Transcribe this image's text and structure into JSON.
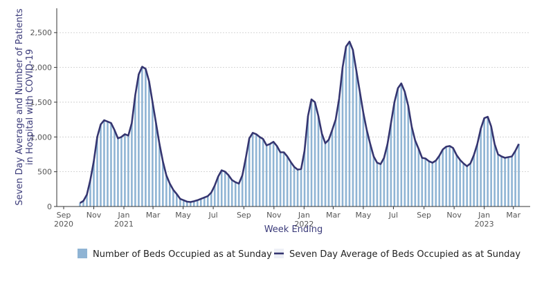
{
  "chart_data": {
    "type": "bar+line",
    "title": "",
    "xlabel": "Week Ending",
    "ylabel_lines": [
      "Seven Day Average and Number of Patients",
      "in Hospital with COVID-19"
    ],
    "ylim": [
      0,
      2850
    ],
    "yticks": [
      0,
      500,
      1000,
      1500,
      2000,
      2500
    ],
    "ytick_labels": [
      "0",
      "500",
      "1,000",
      "1,500",
      "2,000",
      "2,500"
    ],
    "xlim": [
      "2020-08-18",
      "2023-04-04"
    ],
    "xticks": [
      {
        "date": "2020-09-01",
        "line1": "Sep",
        "line2": "2020"
      },
      {
        "date": "2020-11-01",
        "line1": "Nov",
        "line2": ""
      },
      {
        "date": "2021-01-01",
        "line1": "Jan",
        "line2": "2021"
      },
      {
        "date": "2021-03-01",
        "line1": "Mar",
        "line2": ""
      },
      {
        "date": "2021-05-01",
        "line1": "May",
        "line2": ""
      },
      {
        "date": "2021-07-01",
        "line1": "Jul",
        "line2": ""
      },
      {
        "date": "2021-09-01",
        "line1": "Sep",
        "line2": ""
      },
      {
        "date": "2021-11-01",
        "line1": "Nov",
        "line2": ""
      },
      {
        "date": "2022-01-01",
        "line1": "Jan",
        "line2": "2022"
      },
      {
        "date": "2022-03-01",
        "line1": "Mar",
        "line2": ""
      },
      {
        "date": "2022-05-01",
        "line1": "May",
        "line2": ""
      },
      {
        "date": "2022-07-01",
        "line1": "Jul",
        "line2": ""
      },
      {
        "date": "2022-09-01",
        "line1": "Sep",
        "line2": ""
      },
      {
        "date": "2022-11-01",
        "line1": "Nov",
        "line2": ""
      },
      {
        "date": "2023-01-01",
        "line1": "Jan",
        "line2": "2023"
      },
      {
        "date": "2023-03-01",
        "line1": "Mar",
        "line2": ""
      }
    ],
    "grid": "horizontal",
    "legend_position": "bottom-center",
    "series": [
      {
        "name": "Number of Beds Occupied as at Sunday",
        "kind": "bar",
        "color": "#8fb4d4"
      },
      {
        "name": "Seven Day Average of Beds Occupied as at Sunday",
        "kind": "line",
        "color": "#353570"
      }
    ],
    "anchors": [
      [
        "2020-10-04",
        50
      ],
      [
        "2020-10-11",
        80
      ],
      [
        "2020-10-18",
        170
      ],
      [
        "2020-10-25",
        380
      ],
      [
        "2020-11-01",
        650
      ],
      [
        "2020-11-08",
        1000
      ],
      [
        "2020-11-15",
        1180
      ],
      [
        "2020-11-22",
        1240
      ],
      [
        "2020-11-29",
        1220
      ],
      [
        "2020-12-06",
        1200
      ],
      [
        "2020-12-13",
        1100
      ],
      [
        "2020-12-20",
        980
      ],
      [
        "2020-12-27",
        1000
      ],
      [
        "2021-01-03",
        1040
      ],
      [
        "2021-01-10",
        1020
      ],
      [
        "2021-01-17",
        1200
      ],
      [
        "2021-01-24",
        1600
      ],
      [
        "2021-01-31",
        1900
      ],
      [
        "2021-02-07",
        2010
      ],
      [
        "2021-02-14",
        1980
      ],
      [
        "2021-02-21",
        1800
      ],
      [
        "2021-02-28",
        1500
      ],
      [
        "2021-03-07",
        1200
      ],
      [
        "2021-03-14",
        900
      ],
      [
        "2021-03-21",
        650
      ],
      [
        "2021-03-28",
        450
      ],
      [
        "2021-04-04",
        330
      ],
      [
        "2021-04-11",
        240
      ],
      [
        "2021-04-18",
        180
      ],
      [
        "2021-04-25",
        110
      ],
      [
        "2021-05-02",
        90
      ],
      [
        "2021-05-09",
        70
      ],
      [
        "2021-05-16",
        65
      ],
      [
        "2021-05-23",
        75
      ],
      [
        "2021-05-30",
        90
      ],
      [
        "2021-06-06",
        110
      ],
      [
        "2021-06-13",
        130
      ],
      [
        "2021-06-20",
        150
      ],
      [
        "2021-06-27",
        200
      ],
      [
        "2021-07-04",
        300
      ],
      [
        "2021-07-11",
        430
      ],
      [
        "2021-07-18",
        520
      ],
      [
        "2021-07-25",
        500
      ],
      [
        "2021-08-01",
        450
      ],
      [
        "2021-08-08",
        380
      ],
      [
        "2021-08-15",
        350
      ],
      [
        "2021-08-22",
        330
      ],
      [
        "2021-08-29",
        450
      ],
      [
        "2021-09-05",
        700
      ],
      [
        "2021-09-12",
        980
      ],
      [
        "2021-09-19",
        1060
      ],
      [
        "2021-09-26",
        1040
      ],
      [
        "2021-10-03",
        1000
      ],
      [
        "2021-10-10",
        970
      ],
      [
        "2021-10-17",
        880
      ],
      [
        "2021-10-24",
        900
      ],
      [
        "2021-10-31",
        930
      ],
      [
        "2021-11-07",
        870
      ],
      [
        "2021-11-14",
        780
      ],
      [
        "2021-11-21",
        780
      ],
      [
        "2021-11-28",
        720
      ],
      [
        "2021-12-05",
        640
      ],
      [
        "2021-12-12",
        570
      ],
      [
        "2021-12-19",
        530
      ],
      [
        "2021-12-26",
        540
      ],
      [
        "2022-01-02",
        800
      ],
      [
        "2022-01-09",
        1300
      ],
      [
        "2022-01-16",
        1540
      ],
      [
        "2022-01-23",
        1500
      ],
      [
        "2022-01-30",
        1300
      ],
      [
        "2022-02-06",
        1050
      ],
      [
        "2022-02-13",
        910
      ],
      [
        "2022-02-20",
        960
      ],
      [
        "2022-02-27",
        1100
      ],
      [
        "2022-03-06",
        1250
      ],
      [
        "2022-03-13",
        1550
      ],
      [
        "2022-03-20",
        2000
      ],
      [
        "2022-03-27",
        2300
      ],
      [
        "2022-04-03",
        2370
      ],
      [
        "2022-04-10",
        2250
      ],
      [
        "2022-04-17",
        1950
      ],
      [
        "2022-04-24",
        1650
      ],
      [
        "2022-05-01",
        1350
      ],
      [
        "2022-05-08",
        1100
      ],
      [
        "2022-05-15",
        900
      ],
      [
        "2022-05-22",
        720
      ],
      [
        "2022-05-29",
        630
      ],
      [
        "2022-06-05",
        610
      ],
      [
        "2022-06-12",
        700
      ],
      [
        "2022-06-19",
        900
      ],
      [
        "2022-06-26",
        1200
      ],
      [
        "2022-07-03",
        1500
      ],
      [
        "2022-07-10",
        1700
      ],
      [
        "2022-07-17",
        1770
      ],
      [
        "2022-07-24",
        1650
      ],
      [
        "2022-07-31",
        1450
      ],
      [
        "2022-08-07",
        1150
      ],
      [
        "2022-08-14",
        950
      ],
      [
        "2022-08-21",
        830
      ],
      [
        "2022-08-28",
        700
      ],
      [
        "2022-09-04",
        690
      ],
      [
        "2022-09-11",
        650
      ],
      [
        "2022-09-18",
        630
      ],
      [
        "2022-09-25",
        660
      ],
      [
        "2022-10-02",
        730
      ],
      [
        "2022-10-09",
        820
      ],
      [
        "2022-10-16",
        860
      ],
      [
        "2022-10-23",
        870
      ],
      [
        "2022-10-30",
        840
      ],
      [
        "2022-11-06",
        740
      ],
      [
        "2022-11-13",
        670
      ],
      [
        "2022-11-20",
        620
      ],
      [
        "2022-11-27",
        580
      ],
      [
        "2022-12-04",
        620
      ],
      [
        "2022-12-11",
        740
      ],
      [
        "2022-12-18",
        900
      ],
      [
        "2022-12-25",
        1120
      ],
      [
        "2023-01-01",
        1270
      ],
      [
        "2023-01-08",
        1290
      ],
      [
        "2023-01-15",
        1150
      ],
      [
        "2023-01-22",
        900
      ],
      [
        "2023-01-29",
        750
      ],
      [
        "2023-02-05",
        720
      ],
      [
        "2023-02-12",
        700
      ],
      [
        "2023-02-19",
        710
      ],
      [
        "2023-02-26",
        720
      ],
      [
        "2023-03-05",
        800
      ],
      [
        "2023-03-12",
        900
      ]
    ]
  }
}
